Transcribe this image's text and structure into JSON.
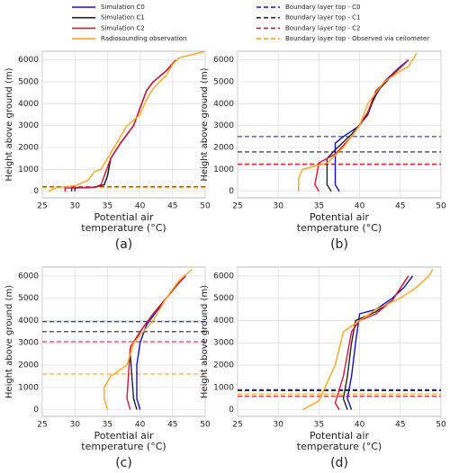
{
  "legend": {
    "solid": [
      {
        "name": "Simulation C0",
        "color": "#1010c8"
      },
      {
        "name": "Simulation C1",
        "color": "#222222"
      },
      {
        "name": "Simulation C2",
        "color": "#dc1436"
      },
      {
        "name": "Radiosounding observation",
        "color": "#ffa51a"
      }
    ],
    "dashed": [
      {
        "name": "Boundary layer top - C0",
        "color": "#1010c8"
      },
      {
        "name": "Boundary layer top - C1",
        "color": "#222222"
      },
      {
        "name": "Boundary layer top - C2",
        "color": "#dc1436"
      },
      {
        "name": "Boundary layer top - Observed via ceilometer",
        "color": "#ffa51a"
      }
    ]
  },
  "chart_data": [
    {
      "type": "line",
      "label": "(a)",
      "xlabel": [
        "Potential air",
        "temperature (°C)"
      ],
      "ylabel": "Height above ground (m)",
      "xlim": [
        25,
        50
      ],
      "ylim": [
        -300,
        6400
      ],
      "xticks": [
        25,
        30,
        35,
        40,
        45,
        50
      ],
      "yticks": [
        0,
        1000,
        2000,
        3000,
        4000,
        5000,
        6000
      ],
      "grid": true,
      "series": [
        {
          "color": "#1010c8",
          "x": [
            30,
            30,
            33,
            34.5,
            35,
            35.5,
            37,
            39,
            40,
            41,
            42,
            44,
            45.5
          ],
          "values": [
            0,
            150,
            180,
            300,
            700,
            1500,
            2200,
            3000,
            3800,
            4600,
            5000,
            5500,
            6000
          ]
        },
        {
          "color": "#222222",
          "x": [
            29.5,
            29.5,
            33,
            34.5,
            35,
            35.5,
            37,
            39,
            40,
            41,
            42,
            44,
            45.5
          ],
          "values": [
            0,
            150,
            180,
            300,
            700,
            1500,
            2200,
            3000,
            3800,
            4600,
            5000,
            5500,
            6000
          ]
        },
        {
          "color": "#dc1436",
          "x": [
            28.5,
            28.5,
            33,
            34,
            34.5,
            35.5,
            37,
            39,
            40,
            41,
            42,
            44,
            45.5
          ],
          "values": [
            0,
            150,
            180,
            300,
            700,
            1500,
            2200,
            3000,
            3800,
            4600,
            5000,
            5500,
            6000
          ]
        },
        {
          "color": "#ffa51a",
          "x": [
            26,
            27,
            30,
            32,
            33,
            34,
            35,
            37,
            38,
            40,
            41,
            42,
            44,
            45,
            46,
            50
          ],
          "values": [
            0,
            150,
            250,
            500,
            900,
            1000,
            1500,
            2500,
            3000,
            3500,
            4200,
            4700,
            5300,
            5800,
            6100,
            6400
          ]
        }
      ],
      "hlines": [
        {
          "color": "#1010c8",
          "value": 200
        },
        {
          "color": "#222222",
          "value": 190
        },
        {
          "color": "#dc1436",
          "value": 180
        },
        {
          "color": "#ffa51a",
          "value": 170
        }
      ]
    },
    {
      "type": "line",
      "label": "(b)",
      "xlabel": [
        "Potential air",
        "temperature (°C)"
      ],
      "ylabel": "Height above ground (m)",
      "xlim": [
        25,
        50
      ],
      "ylim": [
        -300,
        6400
      ],
      "xticks": [
        25,
        30,
        35,
        40,
        45,
        50
      ],
      "yticks": [
        0,
        1000,
        2000,
        3000,
        4000,
        5000,
        6000
      ],
      "grid": true,
      "series": [
        {
          "color": "#1010c8",
          "x": [
            37.5,
            37,
            37,
            37,
            38,
            40,
            41,
            42,
            43,
            45,
            46
          ],
          "values": [
            0,
            300,
            1500,
            2200,
            2500,
            3000,
            3600,
            4400,
            5000,
            5700,
            6000
          ]
        },
        {
          "color": "#222222",
          "x": [
            36.5,
            36,
            36,
            37,
            39,
            41,
            42,
            44,
            46
          ],
          "values": [
            0,
            300,
            1500,
            1900,
            2600,
            3500,
            4500,
            5300,
            6000
          ]
        },
        {
          "color": "#dc1436",
          "x": [
            35,
            34.5,
            35,
            37,
            39,
            41,
            42,
            44,
            46
          ],
          "values": [
            0,
            300,
            1300,
            1700,
            2500,
            3600,
            4600,
            5300,
            6000
          ]
        },
        {
          "color": "#ffa51a",
          "x": [
            32.5,
            32.5,
            33,
            36,
            38,
            40,
            41,
            43,
            45,
            46,
            47
          ],
          "values": [
            0,
            600,
            1000,
            1300,
            2000,
            3000,
            4000,
            5000,
            5500,
            5700,
            6300
          ]
        }
      ],
      "hlines": [
        {
          "color": "#1010c8",
          "value": 2500
        },
        {
          "color": "#222222",
          "value": 1800
        },
        {
          "color": "#dc1436",
          "value": 1250
        },
        {
          "color": "#ffa51a",
          "value": 1200
        }
      ]
    },
    {
      "type": "line",
      "label": "(c)",
      "xlabel": [
        "Potential air",
        "temperature (°C)"
      ],
      "ylabel": "Height above ground (m)",
      "xlim": [
        25,
        50
      ],
      "ylim": [
        -300,
        6400
      ],
      "xticks": [
        25,
        30,
        35,
        40,
        45,
        50
      ],
      "yticks": [
        0,
        1000,
        2000,
        3000,
        4000,
        5000,
        6000
      ],
      "grid": true,
      "series": [
        {
          "color": "#1010c8",
          "x": [
            40,
            39.5,
            39.5,
            40,
            41,
            42,
            44,
            46,
            47
          ],
          "values": [
            0,
            500,
            2000,
            3000,
            3800,
            4200,
            5000,
            5700,
            6000
          ]
        },
        {
          "color": "#222222",
          "x": [
            39.5,
            39,
            38.5,
            39,
            40.5,
            42,
            44,
            46,
            47
          ],
          "values": [
            0,
            500,
            2500,
            3000,
            3700,
            4300,
            5000,
            5700,
            6000
          ]
        },
        {
          "color": "#dc1436",
          "x": [
            38.5,
            38,
            38.5,
            40,
            42,
            44,
            46,
            47
          ],
          "values": [
            0,
            500,
            2800,
            3500,
            4300,
            5000,
            5700,
            6000
          ]
        },
        {
          "color": "#ffa51a",
          "x": [
            35,
            34.5,
            34.5,
            35.5,
            38,
            39,
            42,
            44,
            46,
            48
          ],
          "values": [
            0,
            500,
            1000,
            1500,
            2000,
            3000,
            4000,
            5000,
            5800,
            6300
          ]
        }
      ],
      "hlines": [
        {
          "color": "#1010c8",
          "value": 3950
        },
        {
          "color": "#222222",
          "value": 3500
        },
        {
          "color": "#dc1436",
          "value": 3050
        },
        {
          "color": "#ffa51a",
          "value": 1600
        }
      ]
    },
    {
      "type": "line",
      "label": "(d)",
      "xlabel": [
        "Potential air",
        "temperature (°C)"
      ],
      "ylabel": "Height above ground (m)",
      "xlim": [
        25,
        50
      ],
      "ylim": [
        -300,
        6400
      ],
      "xticks": [
        25,
        30,
        35,
        40,
        45,
        50
      ],
      "yticks": [
        0,
        1000,
        2000,
        3000,
        4000,
        5000,
        6000
      ],
      "grid": true,
      "series": [
        {
          "color": "#1010c8",
          "x": [
            39,
            38.5,
            39,
            39.5,
            40,
            42,
            44,
            45.5,
            46.5
          ],
          "values": [
            0,
            500,
            1500,
            3000,
            4300,
            4500,
            5000,
            5500,
            6000
          ]
        },
        {
          "color": "#222222",
          "x": [
            38.5,
            38,
            38.5,
            39,
            39.5,
            42,
            44,
            46
          ],
          "values": [
            0,
            500,
            1500,
            3000,
            4000,
            4400,
            4900,
            6000
          ]
        },
        {
          "color": "#dc1436",
          "x": [
            37.5,
            37,
            38,
            39,
            40,
            42,
            44,
            46
          ],
          "values": [
            0,
            300,
            1500,
            3500,
            4000,
            4300,
            4900,
            6000
          ]
        },
        {
          "color": "#ffa51a",
          "x": [
            33,
            35,
            36,
            37,
            38,
            40,
            42,
            45,
            47,
            48.5,
            49
          ],
          "values": [
            0,
            400,
            1200,
            2000,
            3500,
            4000,
            4500,
            5000,
            5500,
            6000,
            6300
          ]
        }
      ],
      "hlines": [
        {
          "color": "#1010c8",
          "value": 900
        },
        {
          "color": "#222222",
          "value": 850
        },
        {
          "color": "#dc1436",
          "value": 600
        },
        {
          "color": "#ffa51a",
          "value": 700
        }
      ]
    }
  ]
}
